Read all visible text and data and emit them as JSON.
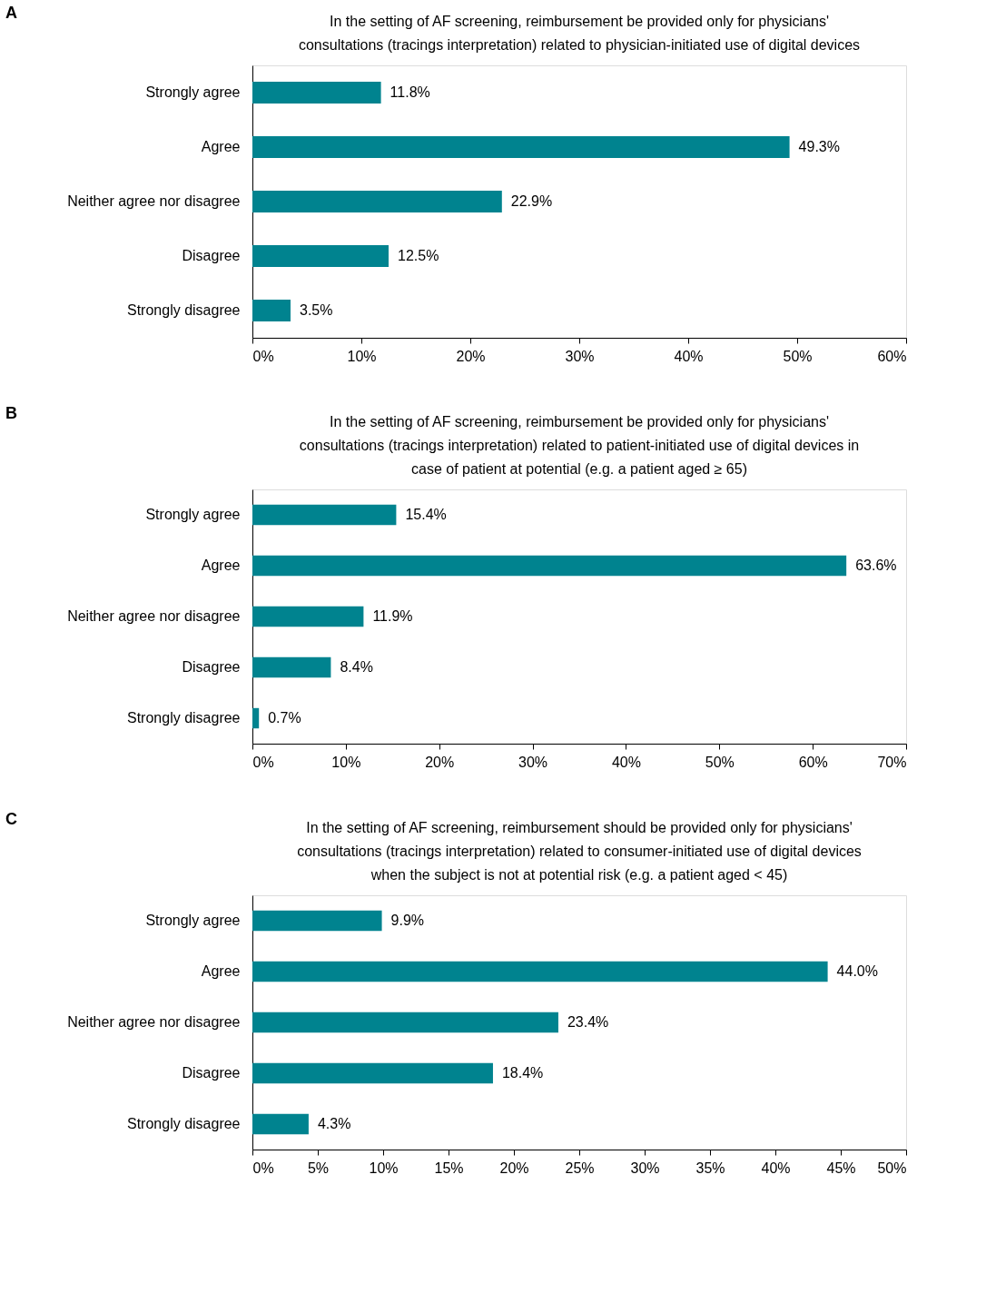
{
  "chart_data": [
    {
      "type": "bar",
      "orientation": "horizontal",
      "title": [
        "In the setting of AF screening, reimbursement be provided only for physicians'",
        "consultations (tracings interpretation) related to physician-initiated use of digital devices"
      ],
      "annotations": [
        "A"
      ],
      "categories": [
        "Strongly agree",
        "Agree",
        "Neither agree nor disagree",
        "Disagree",
        "Strongly disagree"
      ],
      "values": [
        11.8,
        49.3,
        22.9,
        12.5,
        3.5
      ],
      "value_labels": [
        "11.8%",
        "49.3%",
        "22.9%",
        "12.5%",
        "3.5%"
      ],
      "color": "#00838f",
      "xlim": [
        0,
        60
      ],
      "xticks": [
        {
          "value": 0,
          "label": "0%"
        },
        {
          "value": 10,
          "label": "10%"
        },
        {
          "value": 20,
          "label": "20%"
        },
        {
          "value": 30,
          "label": "30%"
        },
        {
          "value": 40,
          "label": "40%"
        },
        {
          "value": 50,
          "label": "50%"
        },
        {
          "value": 60,
          "label": "60%"
        }
      ],
      "grid": false
    },
    {
      "type": "bar",
      "orientation": "horizontal",
      "title": [
        "In the setting of AF screening, reimbursement be provided only for physicians'",
        "consultations (tracings interpretation) related to patient-initiated use of digital devices in",
        "case of patient at potential (e.g. a patient aged ≥ 65)"
      ],
      "annotations": [
        "B"
      ],
      "categories": [
        "Strongly agree",
        "Agree",
        "Neither agree nor disagree",
        "Disagree",
        "Strongly disagree"
      ],
      "values": [
        15.4,
        63.6,
        11.9,
        8.4,
        0.7
      ],
      "value_labels": [
        "15.4%",
        "63.6%",
        "11.9%",
        "8.4%",
        "0.7%"
      ],
      "color": "#00838f",
      "xlim": [
        0,
        70
      ],
      "xticks": [
        {
          "value": 0,
          "label": "0%"
        },
        {
          "value": 10,
          "label": "10%"
        },
        {
          "value": 20,
          "label": "20%"
        },
        {
          "value": 30,
          "label": "30%"
        },
        {
          "value": 40,
          "label": "40%"
        },
        {
          "value": 50,
          "label": "50%"
        },
        {
          "value": 60,
          "label": "60%"
        },
        {
          "value": 70,
          "label": "70%"
        }
      ],
      "grid": false
    },
    {
      "type": "bar",
      "orientation": "horizontal",
      "title": [
        "In the setting of AF screening, reimbursement should be provided only for physicians'",
        "consultations (tracings interpretation) related to consumer-initiated use of digital devices",
        "when the subject is not at potential risk (e.g. a patient aged < 45)"
      ],
      "annotations": [
        "C"
      ],
      "categories": [
        "Strongly agree",
        "Agree",
        "Neither agree nor disagree",
        "Disagree",
        "Strongly disagree"
      ],
      "values": [
        9.9,
        44.0,
        23.4,
        18.4,
        4.3
      ],
      "value_labels": [
        "9.9%",
        "44.0%",
        "23.4%",
        "18.4%",
        "4.3%"
      ],
      "color": "#00838f",
      "xlim": [
        0,
        50
      ],
      "xticks": [
        {
          "value": 0,
          "label": "0%"
        },
        {
          "value": 5,
          "label": "5%"
        },
        {
          "value": 10,
          "label": "10%"
        },
        {
          "value": 15,
          "label": "15%"
        },
        {
          "value": 20,
          "label": "20%"
        },
        {
          "value": 25,
          "label": "25%"
        },
        {
          "value": 30,
          "label": "30%"
        },
        {
          "value": 35,
          "label": "35%"
        },
        {
          "value": 40,
          "label": "40%"
        },
        {
          "value": 45,
          "label": "45%"
        },
        {
          "value": 50,
          "label": "50%"
        }
      ],
      "grid": false
    }
  ]
}
